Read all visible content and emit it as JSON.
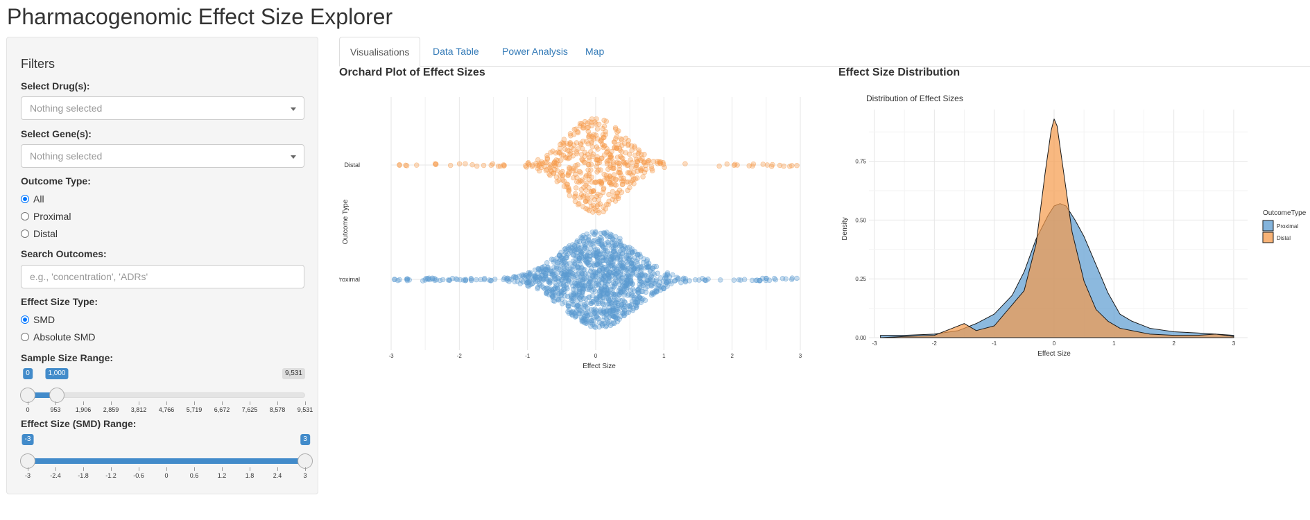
{
  "app": {
    "title": "Pharmacogenomic Effect Size Explorer"
  },
  "filters": {
    "title": "Filters",
    "drug": {
      "label": "Select Drug(s):",
      "placeholder": "Nothing selected"
    },
    "gene": {
      "label": "Select Gene(s):",
      "placeholder": "Nothing selected"
    },
    "outcome_type": {
      "label": "Outcome Type:",
      "options": [
        {
          "label": "All",
          "checked": true
        },
        {
          "label": "Proximal",
          "checked": false
        },
        {
          "label": "Distal",
          "checked": false
        }
      ]
    },
    "search": {
      "label": "Search Outcomes:",
      "placeholder": "e.g., 'concentration', 'ADRs'"
    },
    "effect_size_type": {
      "label": "Effect Size Type:",
      "options": [
        {
          "label": "SMD",
          "checked": true
        },
        {
          "label": "Absolute SMD",
          "checked": false
        }
      ]
    },
    "sample_size": {
      "label": "Sample Size Range:",
      "min": 0,
      "max": 9531,
      "from": 0,
      "to": 1000,
      "from_label": "0",
      "to_label": "1,000",
      "max_label": "9,531",
      "ticks": [
        "0",
        "953",
        "1,906",
        "2,859",
        "3,812",
        "4,766",
        "5,719",
        "6,672",
        "7,625",
        "8,578",
        "9,531"
      ]
    },
    "effect_range": {
      "label": "Effect Size (SMD) Range:",
      "min": -3,
      "max": 3,
      "from": -3,
      "to": 3,
      "from_label": "-3",
      "to_label": "3",
      "ticks": [
        "-3",
        "-2.4",
        "-1.8",
        "-1.2",
        "-0.6",
        "0",
        "0.6",
        "1.2",
        "1.8",
        "2.4",
        "3"
      ]
    }
  },
  "tabs": [
    {
      "label": "Visualisations",
      "active": true
    },
    {
      "label": "Data Table",
      "active": false
    },
    {
      "label": "Power Analysis",
      "active": false
    },
    {
      "label": "Map",
      "active": false
    }
  ],
  "colors": {
    "proximal": "#5b9bd0",
    "distal": "#f59a4a",
    "accent": "#428bca",
    "link": "#337ab7"
  },
  "chart_data": [
    {
      "type": "scatter",
      "panel_title": "Orchard Plot of Effect Sizes",
      "title": "",
      "xlabel": "Effect Size",
      "ylabel": "Outcome Type",
      "xlim": [
        -3,
        3
      ],
      "x_ticks": [
        "-3",
        "-2",
        "-1",
        "0",
        "1",
        "2",
        "3"
      ],
      "categories": [
        "Distal",
        "Proximal"
      ],
      "series": [
        {
          "name": "Distal",
          "points": 500,
          "center": 0,
          "spread": 0.55,
          "max_half_width": 0.35
        },
        {
          "name": "Proximal",
          "points": 1300,
          "center": 0.05,
          "spread": 0.7,
          "max_half_width": 0.35
        }
      ],
      "grid": true,
      "legend": "none"
    },
    {
      "type": "area",
      "panel_title": "Effect Size Distribution",
      "title": "Distribution of Effect Sizes",
      "xlabel": "Effect Size",
      "ylabel": "Density",
      "xlim": [
        -3,
        3
      ],
      "ylim": [
        0,
        0.97
      ],
      "x_ticks": [
        "-3",
        "-2",
        "-1",
        "0",
        "1",
        "2",
        "3"
      ],
      "y_ticks": [
        "0.00",
        "0.25",
        "0.50",
        "0.75"
      ],
      "legend_title": "OutcomeType",
      "legend_position": "right",
      "series": [
        {
          "name": "Proximal",
          "x": [
            -2.9,
            -2.5,
            -2.0,
            -1.6,
            -1.3,
            -1.0,
            -0.7,
            -0.5,
            -0.3,
            -0.1,
            0.0,
            0.1,
            0.2,
            0.35,
            0.5,
            0.7,
            0.9,
            1.1,
            1.3,
            1.6,
            2.0,
            2.4,
            2.7,
            3.0
          ],
          "y": [
            0.01,
            0.01,
            0.015,
            0.03,
            0.06,
            0.1,
            0.18,
            0.28,
            0.42,
            0.52,
            0.56,
            0.57,
            0.56,
            0.5,
            0.43,
            0.31,
            0.19,
            0.1,
            0.07,
            0.04,
            0.025,
            0.02,
            0.015,
            0.01
          ]
        },
        {
          "name": "Distal",
          "x": [
            -2.9,
            -2.5,
            -2.0,
            -1.7,
            -1.5,
            -1.3,
            -1.0,
            -0.7,
            -0.5,
            -0.3,
            -0.15,
            -0.05,
            0.0,
            0.05,
            0.15,
            0.3,
            0.5,
            0.7,
            0.9,
            1.1,
            1.3,
            1.6,
            2.0,
            2.4,
            2.7,
            3.0
          ],
          "y": [
            0.0,
            0.005,
            0.01,
            0.04,
            0.06,
            0.03,
            0.05,
            0.14,
            0.2,
            0.4,
            0.7,
            0.88,
            0.93,
            0.9,
            0.72,
            0.45,
            0.24,
            0.12,
            0.07,
            0.04,
            0.03,
            0.015,
            0.01,
            0.01,
            0.015,
            0.005
          ]
        }
      ]
    }
  ]
}
